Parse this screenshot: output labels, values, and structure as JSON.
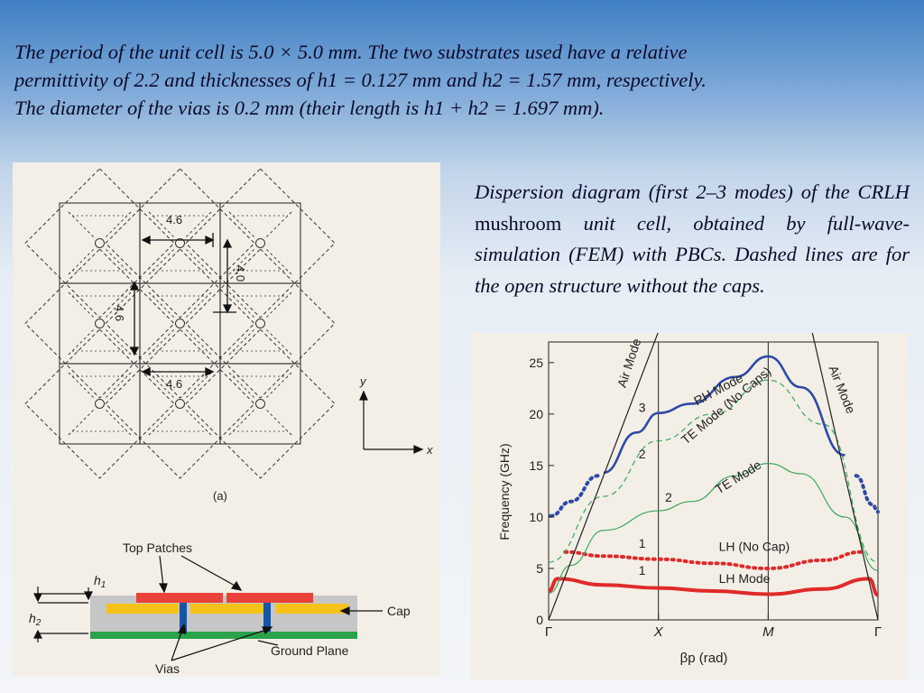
{
  "intro": {
    "line1": "The period of the unit cell is 5.0 × 5.0 mm. The two substrates used have a relative",
    "line2": "permittivity of 2.2 and thicknesses of h1 = 0.127 mm and h2 = 1.57 mm, respectively.",
    "line3": "The diameter of the vias is 0.2 mm (their length is h1 + h2 = 1.697 mm)."
  },
  "caption": {
    "part1": "Dispersion diagram (first 2–3 modes) of the CRLH",
    "part2": "mushroom",
    "part3": "unit cell, obtained by full-wave-simulation (FEM) with PBCs. Dashed lines are for the open structure without the caps."
  },
  "layout_figure": {
    "dim_top": "4.6",
    "dim_bottom": "4.6",
    "dim_left": "4.6",
    "dim_right": "4.0",
    "axis_y": "y",
    "axis_x": "x",
    "label": "(a)"
  },
  "cross_section": {
    "top_patches": "Top Patches",
    "cap": "Cap",
    "ground_plane": "Ground Plane",
    "vias": "Vias",
    "h1": "h",
    "h1_sub": "1",
    "h2": "h",
    "h2_sub": "2"
  },
  "colors": {
    "patch": "#e8423a",
    "cap": "#f5c21a",
    "substrate": "#c6c6c6",
    "via": "#1656a8",
    "ground": "#2aa24a",
    "rh_mode": "#2e4aa8",
    "te_mode": "#3aa85a",
    "lh_mode": "#e02a2a"
  },
  "chart_data": {
    "type": "line",
    "ylabel": "Frequency (GHz)",
    "xlabel": "βp (rad)",
    "ylim": [
      0,
      27
    ],
    "yticks": [
      "0",
      "5",
      "10",
      "15",
      "20",
      "25"
    ],
    "xticks": [
      "Γ",
      "X",
      "M",
      "Γ"
    ],
    "x": [
      0,
      1,
      2,
      3
    ],
    "series": [
      {
        "name": "LH Mode",
        "style": "solid",
        "color": "#e02a2a",
        "points": [
          [
            0,
            2.8
          ],
          [
            0.08,
            4.0
          ],
          [
            0.5,
            3.4
          ],
          [
            1,
            3.1
          ],
          [
            1.5,
            2.8
          ],
          [
            2,
            2.5
          ],
          [
            2.5,
            3.0
          ],
          [
            2.92,
            4.0
          ],
          [
            3,
            2.4
          ]
        ]
      },
      {
        "name": "LH (No Cap)",
        "style": "dotted",
        "color": "#e02a2a",
        "points": [
          [
            0.15,
            6.6
          ],
          [
            0.5,
            6.2
          ],
          [
            1,
            5.9
          ],
          [
            1.5,
            5.5
          ],
          [
            2,
            5.0
          ],
          [
            2.5,
            5.8
          ],
          [
            2.85,
            6.6
          ]
        ]
      },
      {
        "name": "TE Mode",
        "style": "solid",
        "color": "#3aa85a",
        "points": [
          [
            0,
            2.6
          ],
          [
            0.2,
            5.3
          ],
          [
            0.5,
            8.7
          ],
          [
            1,
            10.6
          ],
          [
            1.3,
            11.5
          ],
          [
            1.7,
            14.0
          ],
          [
            2,
            15.2
          ],
          [
            2.3,
            14.2
          ],
          [
            2.7,
            10.0
          ],
          [
            3,
            4.8
          ]
        ]
      },
      {
        "name": "TE Mode (No Caps)",
        "style": "dashed",
        "color": "#3aa85a",
        "points": [
          [
            0,
            5.6
          ],
          [
            0.5,
            12.0
          ],
          [
            1,
            17.4
          ],
          [
            1.5,
            20.0
          ],
          [
            2,
            23.3
          ],
          [
            2.5,
            19.0
          ],
          [
            3,
            5.6
          ]
        ]
      },
      {
        "name": "RH Mode",
        "style": "solid",
        "color": "#2e4aa8",
        "points": [
          [
            0.5,
            14.3
          ],
          [
            0.8,
            18.2
          ],
          [
            1,
            20.1
          ],
          [
            1.3,
            21.0
          ],
          [
            1.7,
            23.6
          ],
          [
            2,
            25.6
          ],
          [
            2.3,
            22.6
          ],
          [
            2.7,
            16.0
          ]
        ]
      },
      {
        "name": "Upper dotted mode",
        "style": "dotted",
        "color": "#2e4aa8",
        "points": [
          [
            0.02,
            10.1
          ],
          [
            0.2,
            11.5
          ],
          [
            0.45,
            14.0
          ]
        ]
      },
      {
        "name": "Upper dotted mode right",
        "style": "dotted",
        "color": "#2e4aa8",
        "points": [
          [
            2.8,
            14.0
          ],
          [
            2.95,
            11.2
          ],
          [
            3,
            10.5
          ]
        ]
      },
      {
        "name": "Air Mode",
        "style": "solid",
        "color": "#222222",
        "points": [
          [
            0,
            0
          ],
          [
            1,
            28
          ]
        ]
      },
      {
        "name": "Air Mode",
        "style": "solid",
        "color": "#222222",
        "points": [
          [
            2.4,
            28
          ],
          [
            3,
            0
          ]
        ]
      }
    ],
    "annotations": [
      "Air Mode",
      "Air Mode",
      "RH Mode",
      "TE Mode (No Caps)",
      "TE Mode",
      "LH (No Cap)",
      "LH Mode",
      "3",
      "2",
      "2",
      "1",
      "1"
    ]
  }
}
